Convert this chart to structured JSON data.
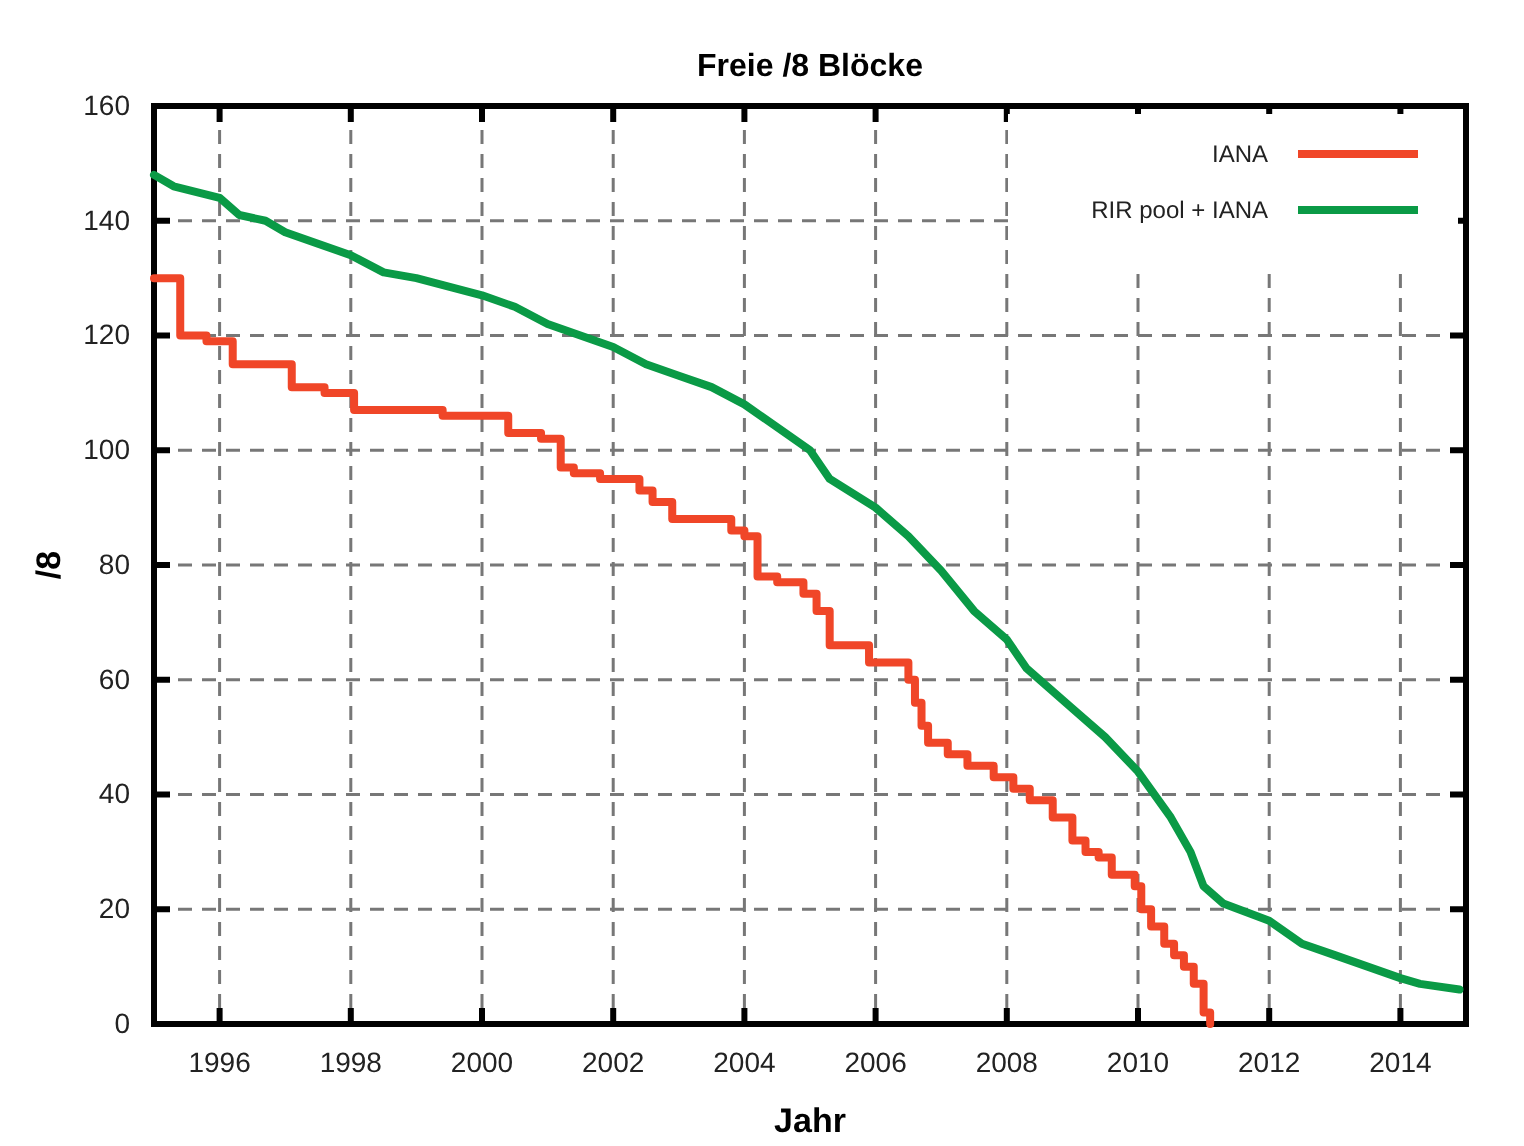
{
  "chart_data": {
    "type": "step",
    "title": "Freie /8 Blöcke",
    "xlabel": "Jahr",
    "ylabel": "/8",
    "xlim": [
      1995,
      2015
    ],
    "xticks": [
      1996,
      1998,
      2000,
      2002,
      2004,
      2006,
      2008,
      2010,
      2012,
      2014
    ],
    "ylim": [
      0,
      160
    ],
    "yticks": [
      0,
      20,
      40,
      60,
      80,
      100,
      120,
      140,
      160
    ],
    "grid": true,
    "legend": "top right",
    "series": [
      {
        "name": "IANA",
        "color": "#f04628",
        "type": "step",
        "x": [
          1995,
          1995.4,
          1995.8,
          1996.2,
          1996.4,
          1997.1,
          1997.6,
          1998.05,
          1999.4,
          2000.4,
          2000.9,
          2001.2,
          2001.4,
          2001.8,
          2002.4,
          2002.6,
          2002.9,
          2003.2,
          2003.8,
          2004.0,
          2004.2,
          2004.5,
          2004.9,
          2005.1,
          2005.3,
          2005.9,
          2006.5,
          2006.6,
          2006.7,
          2006.8,
          2007.1,
          2007.4,
          2007.8,
          2008.1,
          2008.35,
          2008.7,
          2009.0,
          2009.2,
          2009.4,
          2009.6,
          2009.95,
          2010.05,
          2010.2,
          2010.4,
          2010.55,
          2010.7,
          2010.85,
          2011.0,
          2011.1
        ],
        "values": [
          130,
          120,
          119,
          115,
          115,
          111,
          110,
          107,
          106,
          103,
          102,
          97,
          96,
          95,
          93,
          91,
          88,
          88,
          86,
          85,
          78,
          77,
          75,
          72,
          66,
          63,
          60,
          56,
          52,
          49,
          47,
          45,
          43,
          41,
          39,
          36,
          32,
          30,
          29,
          26,
          24,
          20,
          17,
          14,
          12,
          10,
          7,
          2,
          0
        ]
      },
      {
        "name": "RIR pool + IANA",
        "color": "#0a9a46",
        "type": "line",
        "x": [
          1995,
          1995.3,
          1996,
          1996.3,
          1996.7,
          1997,
          1997.5,
          1998,
          1998.5,
          1999,
          2000,
          2000.5,
          2001,
          2002,
          2002.5,
          2003,
          2003.5,
          2004,
          2004.5,
          2005,
          2005.3,
          2006,
          2006.5,
          2007,
          2007.5,
          2008,
          2008.3,
          2009,
          2009.5,
          2010,
          2010.5,
          2010.8,
          2011,
          2011.3,
          2012,
          2012.5,
          2013,
          2013.5,
          2014,
          2014.3,
          2014.9
        ],
        "values": [
          148,
          146,
          144,
          141,
          140,
          138,
          136,
          134,
          131,
          130,
          127,
          125,
          122,
          118,
          115,
          113,
          111,
          108,
          104,
          100,
          95,
          90,
          85,
          79,
          72,
          67,
          62,
          55,
          50,
          44,
          36,
          30,
          24,
          21,
          18,
          14,
          12,
          10,
          8,
          7,
          6
        ]
      }
    ]
  }
}
